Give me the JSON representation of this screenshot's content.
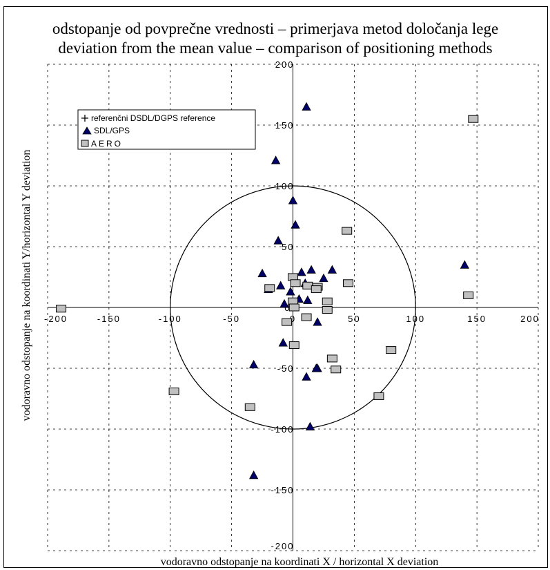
{
  "chart_data": {
    "type": "scatter",
    "title": "odstopanje od povprečne vrednosti – primerjava metod določanja lege",
    "subtitle": "deviation from the mean value – comparison of positioning methods",
    "xlabel": "vodoravno odstopanje na koordinati X / horizontal X deviation",
    "ylabel": "vodoravno odstopanje na koordinati Y/horizontal Y deviation",
    "xlim": [
      -200,
      200
    ],
    "ylim": [
      -200,
      200
    ],
    "x_ticks": [
      "-200",
      "-150",
      "-100",
      "-50",
      "0",
      "50",
      "100",
      "150",
      "200"
    ],
    "y_ticks": [
      "200",
      "150",
      "100",
      "50",
      "0",
      "-50",
      "-100",
      "-150",
      "-200"
    ],
    "grid": true,
    "grid_style": "dashed",
    "legend_position": "top-left",
    "circle_radius": 100,
    "series": [
      {
        "name": "referenčni DSDL/DGPS reference",
        "marker": "plus",
        "color": "#000000",
        "x": [
          0
        ],
        "y": [
          0
        ]
      },
      {
        "name": "SDL/GPS",
        "marker": "triangle",
        "color": "#000066",
        "x": [
          11,
          -14,
          0,
          2,
          -12,
          -25,
          -10,
          -20,
          -7,
          -2,
          7,
          15,
          25,
          32,
          10,
          12,
          5,
          20,
          20,
          -8,
          19,
          11,
          14,
          -32,
          140,
          -32
        ],
        "y": [
          165,
          121,
          88,
          68,
          55,
          28,
          18,
          15,
          3,
          13,
          29,
          31,
          24,
          31,
          20,
          6,
          7,
          -12,
          -50,
          -29,
          -50,
          -57,
          -98,
          -47,
          35,
          -138
        ]
      },
      {
        "name": "AERO",
        "marker": "square",
        "color": "#C0C0C0",
        "x": [
          147,
          44,
          45,
          -19,
          0,
          2,
          12,
          20,
          19,
          28,
          28,
          0,
          1,
          11,
          -5,
          1,
          80,
          32,
          35,
          70,
          -35,
          -97,
          -189,
          143
        ],
        "y": [
          155,
          63,
          20,
          16,
          25,
          20,
          18,
          17,
          15,
          5,
          -2,
          5,
          0,
          -8,
          -12,
          -31,
          -35,
          -42,
          -51,
          -73,
          -82,
          -69,
          -1,
          10
        ]
      }
    ]
  }
}
